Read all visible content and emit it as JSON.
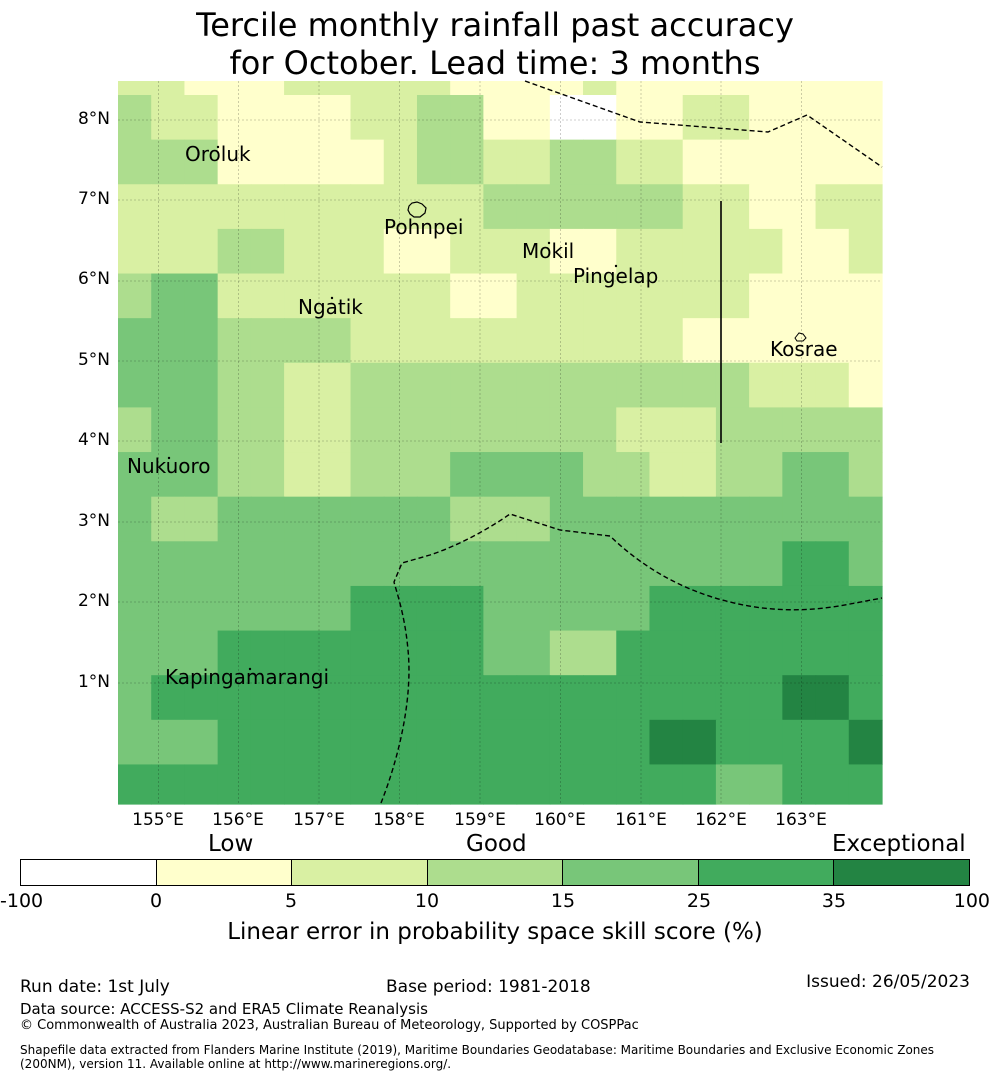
{
  "title": {
    "line1": "Tercile monthly rainfall past accuracy",
    "line2": "for October. Lead time: 3 months"
  },
  "axes": {
    "lat_labels": [
      "8°N",
      "7°N",
      "6°N",
      "5°N",
      "4°N",
      "3°N",
      "2°N",
      "1°N"
    ],
    "lon_labels": [
      "155°E",
      "156°E",
      "157°E",
      "158°E",
      "159°E",
      "160°E",
      "161°E",
      "162°E",
      "163°E"
    ]
  },
  "places": [
    {
      "name": "Oroluk"
    },
    {
      "name": "Pohnpei"
    },
    {
      "name": "Mokil"
    },
    {
      "name": "Pingelap"
    },
    {
      "name": "Ngatik"
    },
    {
      "name": "Kosrae"
    },
    {
      "name": "Nukuoro"
    },
    {
      "name": "Kapingamarangi"
    }
  ],
  "colors": {
    "c0": "#ffffff",
    "c1": "#ffffcc",
    "c2": "#d9f0a3",
    "c3": "#addd8e",
    "c4": "#78c679",
    "c5": "#41ab5d",
    "c6": "#238443"
  },
  "grid": [
    [
      2,
      2,
      1,
      1,
      1,
      2,
      2,
      2,
      2,
      2,
      1,
      1,
      1,
      1,
      2,
      1,
      1,
      1,
      1,
      1,
      1,
      1,
      1
    ],
    [
      3,
      2,
      2,
      1,
      1,
      1,
      1,
      2,
      2,
      3,
      3,
      1,
      1,
      0,
      0,
      1,
      1,
      2,
      2,
      1,
      1,
      1,
      1
    ],
    [
      3,
      3,
      3,
      1,
      1,
      1,
      1,
      1,
      2,
      3,
      3,
      2,
      2,
      3,
      3,
      2,
      2,
      1,
      1,
      1,
      1,
      1,
      1
    ],
    [
      2,
      2,
      2,
      2,
      2,
      2,
      2,
      2,
      2,
      2,
      2,
      3,
      3,
      3,
      3,
      3,
      3,
      2,
      2,
      1,
      1,
      2,
      2
    ],
    [
      2,
      2,
      2,
      3,
      3,
      2,
      2,
      2,
      1,
      1,
      2,
      2,
      2,
      1,
      1,
      2,
      2,
      2,
      2,
      2,
      1,
      1,
      2
    ],
    [
      3,
      4,
      4,
      2,
      2,
      2,
      2,
      2,
      2,
      2,
      1,
      1,
      2,
      2,
      2,
      2,
      2,
      2,
      2,
      1,
      1,
      1,
      1
    ],
    [
      4,
      4,
      4,
      3,
      3,
      3,
      3,
      2,
      2,
      2,
      2,
      2,
      2,
      2,
      2,
      2,
      2,
      1,
      1,
      1,
      1,
      1,
      1
    ],
    [
      4,
      4,
      4,
      3,
      3,
      2,
      2,
      3,
      3,
      3,
      3,
      3,
      3,
      3,
      3,
      3,
      3,
      3,
      3,
      2,
      2,
      2,
      1
    ],
    [
      3,
      4,
      4,
      3,
      3,
      2,
      2,
      3,
      3,
      3,
      3,
      3,
      3,
      3,
      3,
      2,
      2,
      2,
      3,
      3,
      3,
      3,
      3
    ],
    [
      4,
      4,
      4,
      3,
      3,
      2,
      2,
      3,
      3,
      3,
      4,
      4,
      4,
      4,
      3,
      3,
      2,
      2,
      3,
      3,
      4,
      4,
      3
    ],
    [
      4,
      3,
      3,
      4,
      4,
      4,
      4,
      4,
      4,
      4,
      3,
      3,
      3,
      4,
      4,
      4,
      4,
      4,
      4,
      4,
      4,
      4,
      4
    ],
    [
      4,
      4,
      4,
      4,
      4,
      4,
      4,
      4,
      4,
      4,
      4,
      4,
      4,
      4,
      4,
      4,
      4,
      4,
      4,
      4,
      5,
      5,
      4
    ],
    [
      4,
      4,
      4,
      4,
      4,
      4,
      4,
      5,
      5,
      5,
      5,
      4,
      4,
      4,
      4,
      4,
      5,
      5,
      5,
      5,
      5,
      5,
      5
    ],
    [
      4,
      4,
      4,
      5,
      5,
      5,
      5,
      5,
      5,
      5,
      5,
      4,
      4,
      3,
      3,
      5,
      5,
      5,
      5,
      5,
      5,
      5,
      5
    ],
    [
      4,
      5,
      5,
      5,
      5,
      5,
      5,
      5,
      5,
      5,
      5,
      5,
      5,
      5,
      5,
      5,
      5,
      5,
      5,
      5,
      6,
      6,
      5
    ],
    [
      4,
      4,
      4,
      5,
      5,
      5,
      5,
      5,
      5,
      5,
      5,
      5,
      5,
      5,
      5,
      5,
      6,
      6,
      5,
      5,
      5,
      5,
      6
    ],
    [
      5,
      5,
      5,
      5,
      5,
      5,
      5,
      5,
      5,
      5,
      5,
      5,
      5,
      5,
      5,
      5,
      5,
      5,
      4,
      4,
      5,
      5,
      5
    ]
  ],
  "colorbar": {
    "categories": [
      "Low",
      "Good",
      "Exceptional"
    ],
    "ticks": [
      "-100",
      "0",
      "5",
      "10",
      "15",
      "25",
      "35",
      "100"
    ],
    "label": "Linear error in probability space skill score (%)"
  },
  "footer": {
    "run_date": "Run date: 1st July",
    "base_period": "Base period: 1981-2018",
    "issued": "Issued: 26/05/2023",
    "data_source": "Data source: ACCESS-S2 and ERA5 Climate Reanalysis",
    "copyright": "© Commonwealth of Australia 2023, Australian Bureau of Meteorology, Supported by COSPPac",
    "shapefile_line1": "Shapefile data extracted from Flanders Marine Institute (2019), Maritime Boundaries Geodatabase: Maritime Boundaries and Exclusive Economic Zones",
    "shapefile_line2": "(200NM), version 11. Available online at http://www.marineregions.org/."
  }
}
